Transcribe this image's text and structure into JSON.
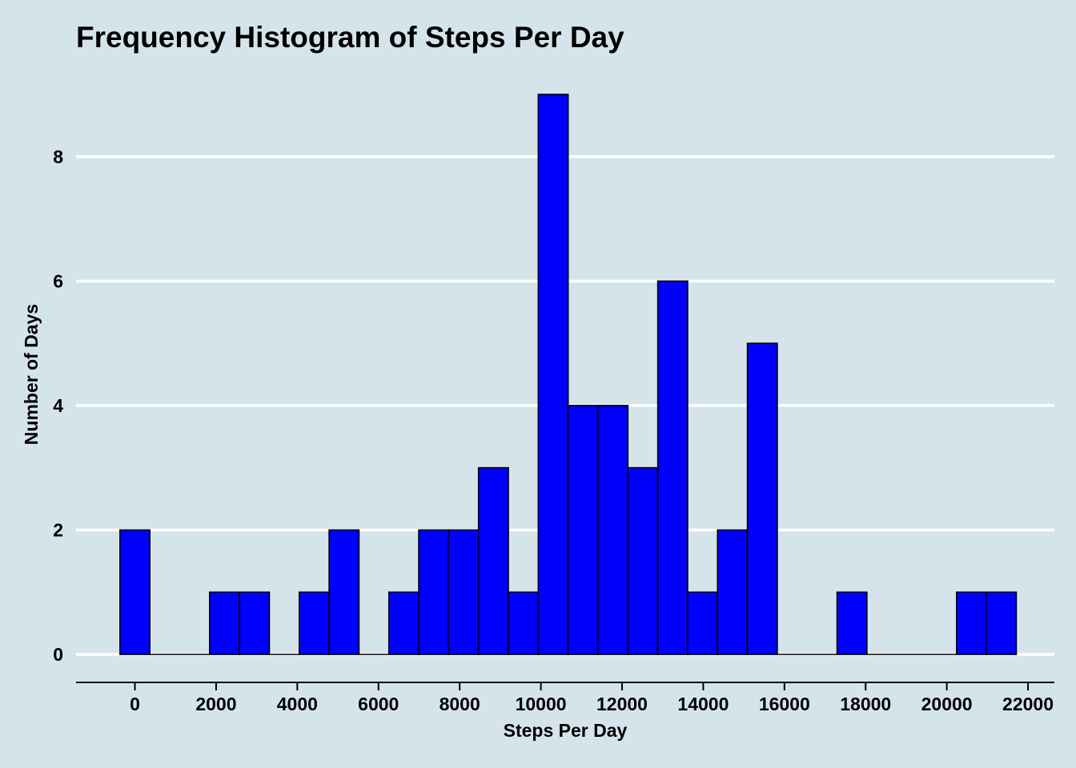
{
  "chart_data": {
    "type": "bar",
    "title": "Frequency Histogram of Steps Per Day",
    "xlabel": "Steps Per Day",
    "ylabel": "Number of Days",
    "bin_width": 736,
    "bins": [
      {
        "start": -368,
        "end": 368,
        "count": 2
      },
      {
        "start": 368,
        "end": 1104,
        "count": 0
      },
      {
        "start": 1104,
        "end": 1840,
        "count": 0
      },
      {
        "start": 1840,
        "end": 2576,
        "count": 1
      },
      {
        "start": 2576,
        "end": 3312,
        "count": 1
      },
      {
        "start": 3312,
        "end": 4048,
        "count": 0
      },
      {
        "start": 4048,
        "end": 4784,
        "count": 1
      },
      {
        "start": 4784,
        "end": 5520,
        "count": 2
      },
      {
        "start": 5520,
        "end": 6256,
        "count": 0
      },
      {
        "start": 6256,
        "end": 6992,
        "count": 1
      },
      {
        "start": 6992,
        "end": 7728,
        "count": 2
      },
      {
        "start": 7728,
        "end": 8464,
        "count": 2
      },
      {
        "start": 8464,
        "end": 9200,
        "count": 3
      },
      {
        "start": 9200,
        "end": 9936,
        "count": 1
      },
      {
        "start": 9936,
        "end": 10672,
        "count": 9
      },
      {
        "start": 10672,
        "end": 11408,
        "count": 4
      },
      {
        "start": 11408,
        "end": 12144,
        "count": 4
      },
      {
        "start": 12144,
        "end": 12880,
        "count": 3
      },
      {
        "start": 12880,
        "end": 13616,
        "count": 6
      },
      {
        "start": 13616,
        "end": 14352,
        "count": 1
      },
      {
        "start": 14352,
        "end": 15088,
        "count": 2
      },
      {
        "start": 15088,
        "end": 15824,
        "count": 5
      },
      {
        "start": 15824,
        "end": 16560,
        "count": 0
      },
      {
        "start": 16560,
        "end": 17296,
        "count": 0
      },
      {
        "start": 17296,
        "end": 18032,
        "count": 1
      },
      {
        "start": 18032,
        "end": 18768,
        "count": 0
      },
      {
        "start": 18768,
        "end": 19504,
        "count": 0
      },
      {
        "start": 19504,
        "end": 20240,
        "count": 0
      },
      {
        "start": 20240,
        "end": 20976,
        "count": 1
      },
      {
        "start": 20976,
        "end": 21712,
        "count": 1
      }
    ],
    "x_ticks": [
      0,
      2000,
      4000,
      6000,
      8000,
      10000,
      12000,
      14000,
      16000,
      18000,
      20000,
      22000
    ],
    "x_tick_labels": [
      "0",
      "2000",
      "4000",
      "6000",
      "8000",
      "10000",
      "12000",
      "14000",
      "16000",
      "18000",
      "20000",
      "22000"
    ],
    "y_ticks": [
      0,
      2,
      4,
      6,
      8
    ],
    "y_tick_labels": [
      "0",
      "2",
      "4",
      "6",
      "8"
    ],
    "xlim": [
      -1450,
      22650
    ],
    "ylim": [
      0,
      9
    ],
    "grid": {
      "horizontal": true,
      "vertical": false,
      "color": "#ffffff"
    },
    "bar_fill": "#0000ff",
    "bar_stroke": "#000000",
    "background": "#d5e4eb",
    "legend": "none"
  }
}
